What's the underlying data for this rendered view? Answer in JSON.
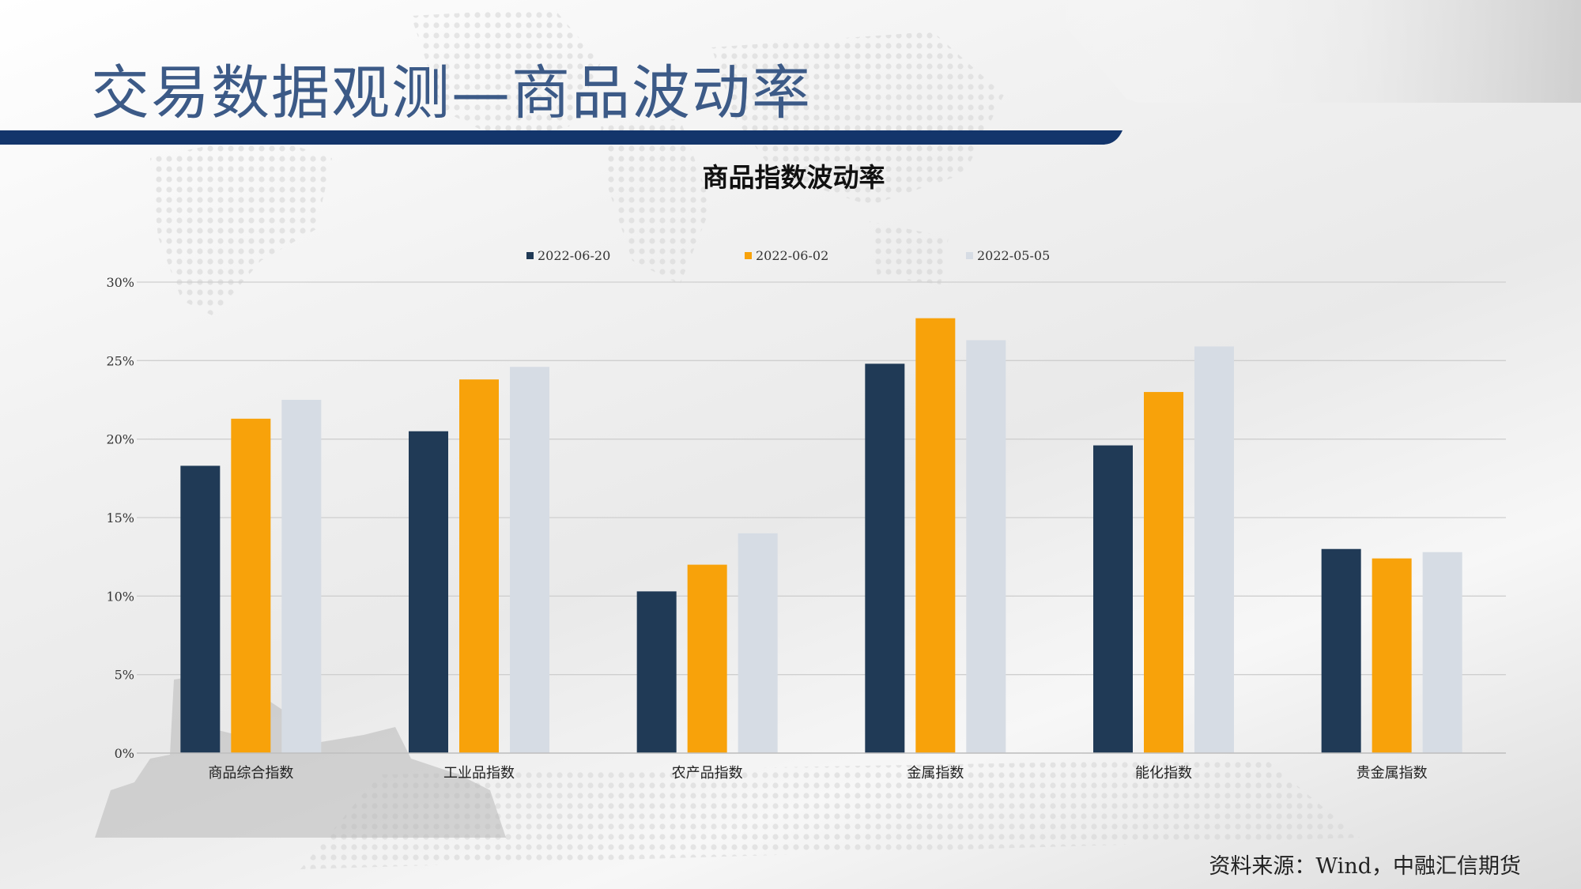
{
  "slide": {
    "title": "交易数据观测—商品波动率",
    "source": "资料来源：Wind，中融汇信期货"
  },
  "colors": {
    "title": "#3c5a87",
    "banner": "#13356b",
    "series": [
      "#203a56",
      "#f8a20a",
      "#d6dce4"
    ]
  },
  "chart_data": {
    "type": "bar",
    "title": "商品指数波动率",
    "categories": [
      "商品综合指数",
      "工业品指数",
      "农产品指数",
      "金属指数",
      "能化指数",
      "贵金属指数"
    ],
    "series": [
      {
        "name": "2022-06-20",
        "values": [
          18.3,
          20.5,
          10.3,
          24.8,
          19.6,
          13.0
        ]
      },
      {
        "name": "2022-06-02",
        "values": [
          21.3,
          23.8,
          12.0,
          27.7,
          23.0,
          12.4
        ]
      },
      {
        "name": "2022-05-05",
        "values": [
          22.5,
          24.6,
          14.0,
          26.3,
          25.9,
          12.8
        ]
      }
    ],
    "ylim": [
      0,
      30
    ],
    "yticks": [
      0,
      5,
      10,
      15,
      20,
      25,
      30
    ],
    "ytick_labels": [
      "0%",
      "5%",
      "10%",
      "15%",
      "20%",
      "25%",
      "30%"
    ],
    "grid": true,
    "legend": "top-center"
  }
}
